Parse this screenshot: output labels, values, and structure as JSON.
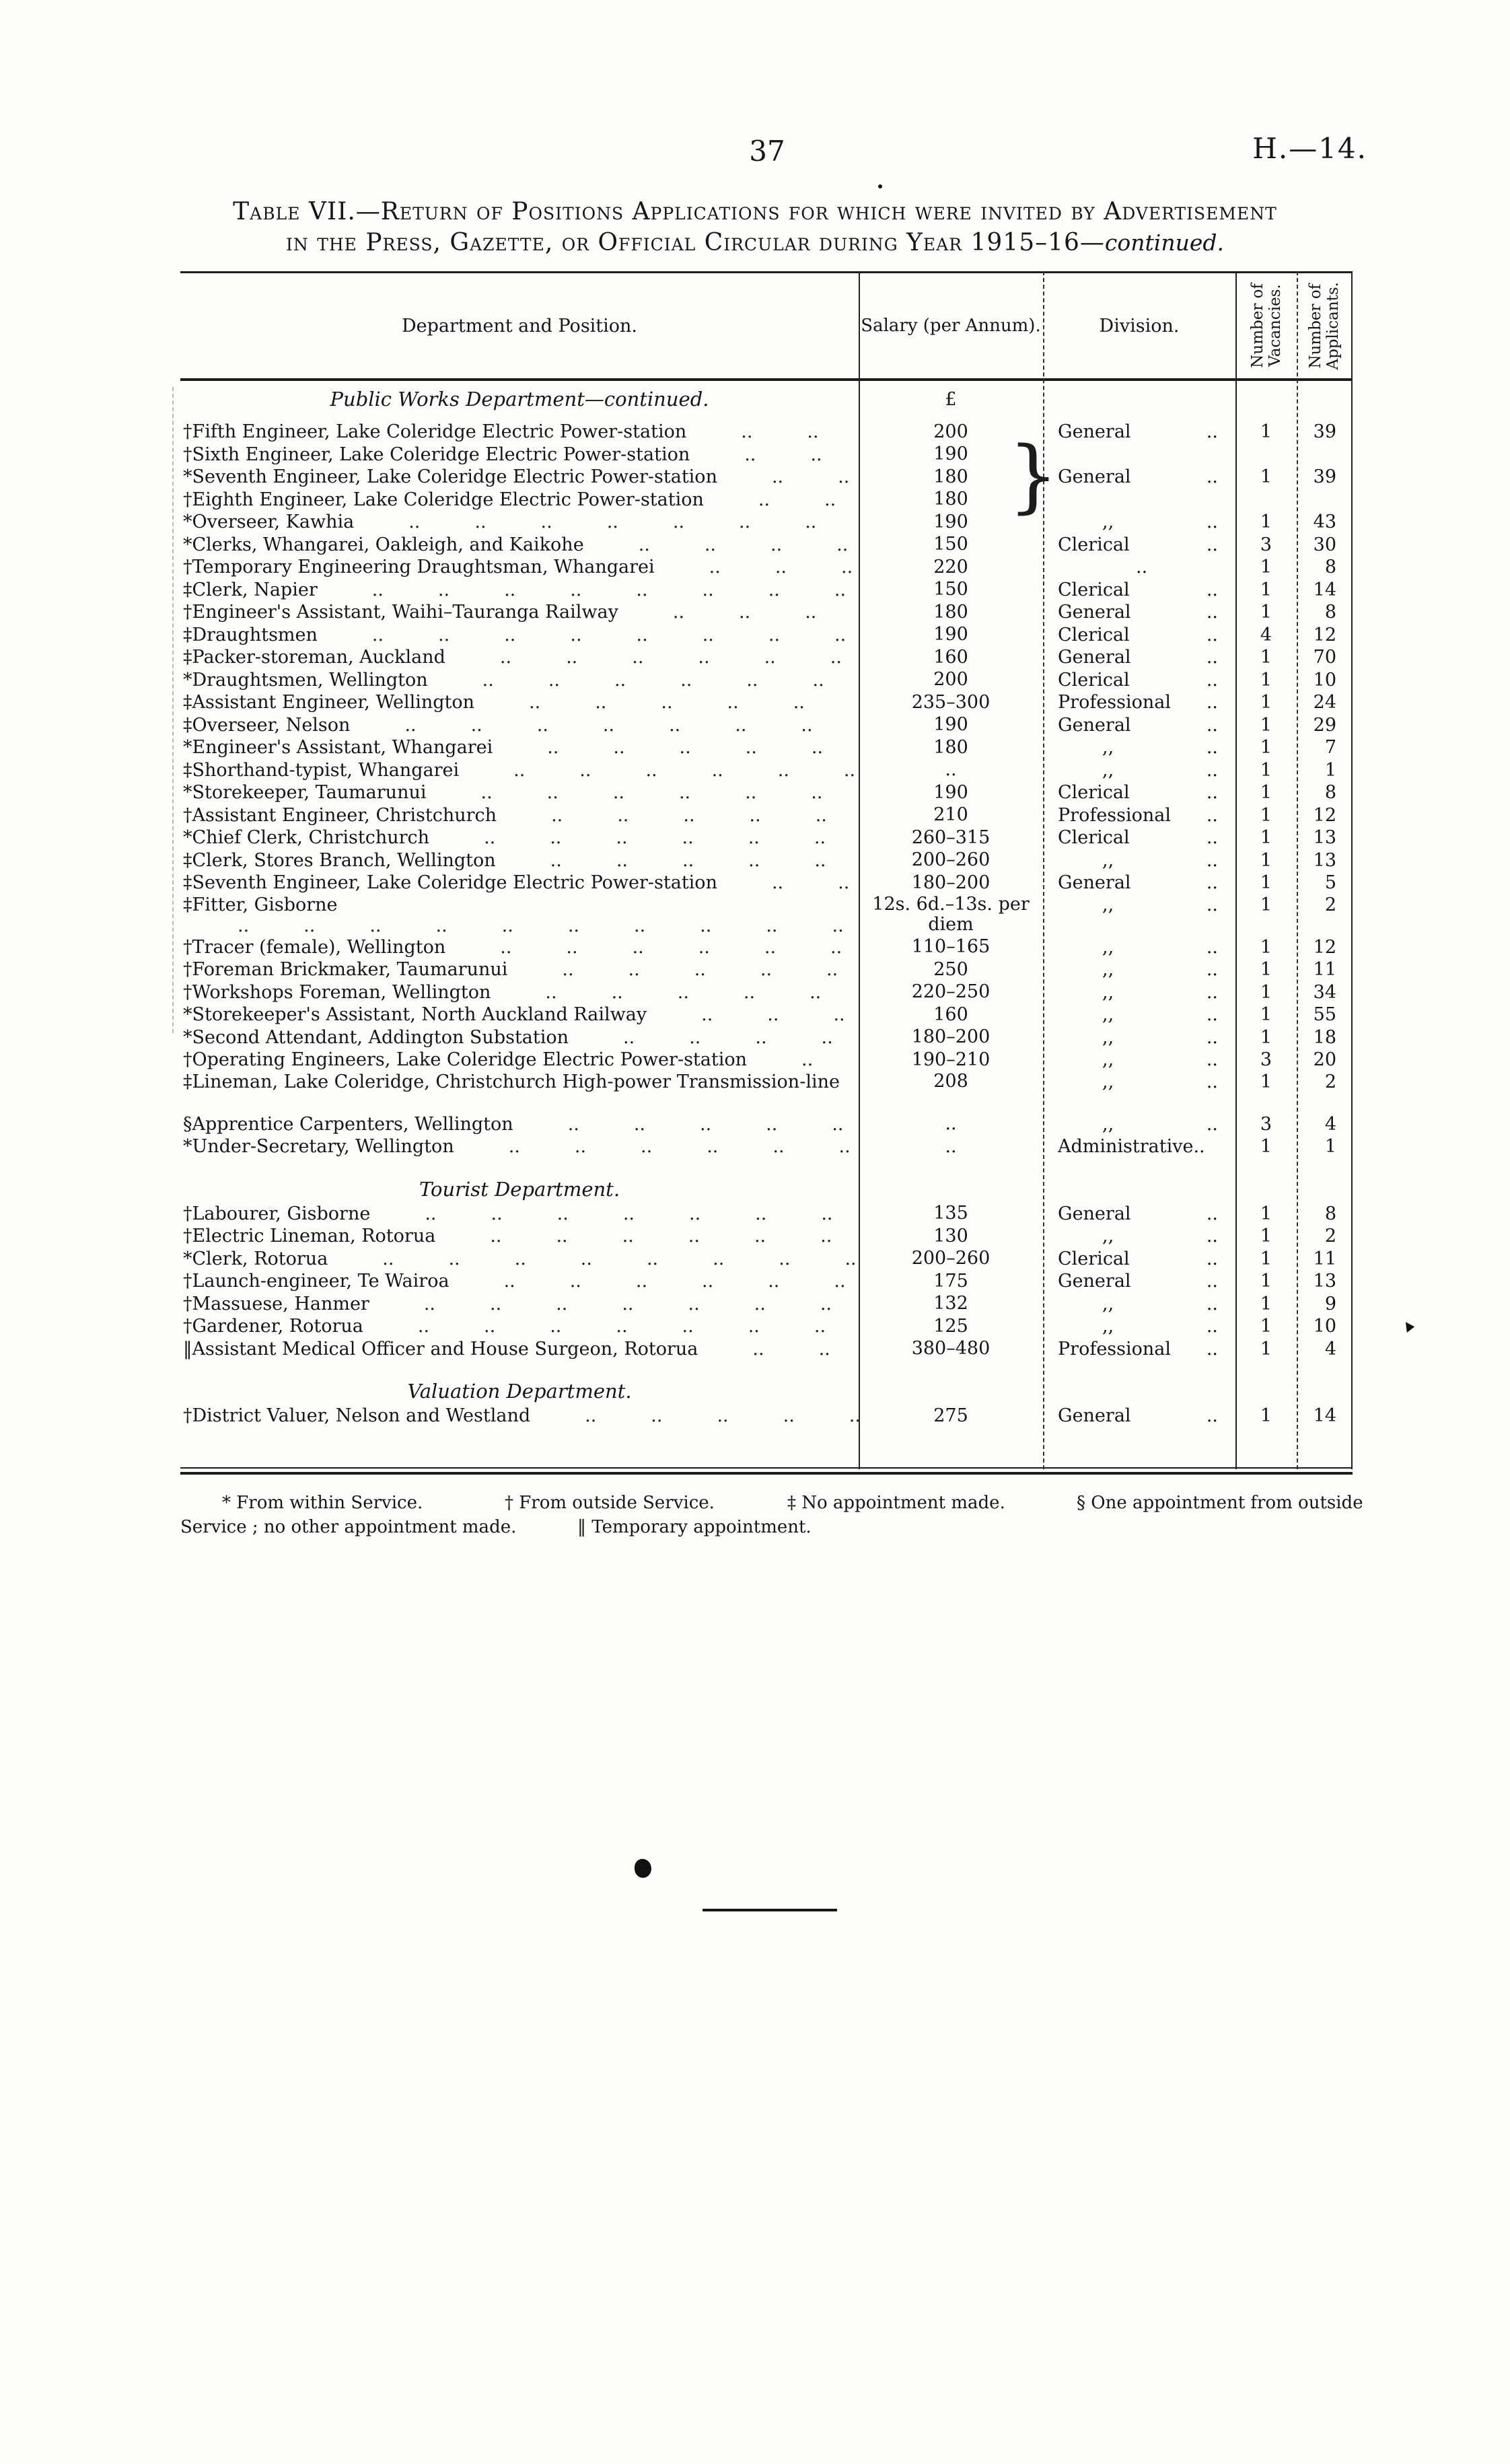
{
  "page": {
    "number": "37",
    "code": "H.—14."
  },
  "title": {
    "line1": "Table VII.—Return of Positions Applications for which were invited by Advertisement",
    "line2_pre": "in the Press, Gazette, or Official Circular during Year 1915–16—",
    "line2_italic": "continued."
  },
  "table": {
    "currency_symbol": "£",
    "headers": {
      "department": "Department and Position.",
      "salary": "Salary (per Annum).",
      "division": "Division.",
      "vacancies": "Number of\nVacancies.",
      "applicants": "Number of\nApplicants."
    },
    "rows": [
      {
        "type": "section",
        "label": "Public Works Department—continued.",
        "currency": true
      },
      {
        "type": "item",
        "marker": "†",
        "position": "Fifth Engineer, Lake Coleridge Electric Power-station",
        "salary": "200",
        "division": "General",
        "vacancies": "1",
        "applicants": "39"
      },
      {
        "type": "item",
        "marker": "†",
        "position": "Sixth Engineer, Lake Coleridge Electric Power-station",
        "salary": "190",
        "division": "",
        "vacancies": "",
        "applicants": ""
      },
      {
        "type": "item",
        "marker": "*",
        "position": "Seventh Engineer, Lake Coleridge Electric Power-station",
        "salary": "180",
        "division": "General",
        "vacancies": "1",
        "applicants": "39"
      },
      {
        "type": "item",
        "marker": "†",
        "position": "Eighth Engineer, Lake Coleridge Electric Power-station",
        "salary": "180",
        "division": "",
        "vacancies": "",
        "applicants": ""
      },
      {
        "type": "item",
        "marker": "*",
        "position": "Overseer, Kawhia",
        "salary": "190",
        "division": ",,",
        "vacancies": "1",
        "applicants": "43"
      },
      {
        "type": "item",
        "marker": "*",
        "position": "Clerks, Whangarei, Oakleigh, and Kaikohe",
        "salary": "150",
        "division": "Clerical",
        "vacancies": "3",
        "applicants": "30"
      },
      {
        "type": "item",
        "marker": "†",
        "position": "Temporary Engineering Draughtsman, Whangarei",
        "salary": "220",
        "division": "..",
        "vacancies": "1",
        "applicants": "8"
      },
      {
        "type": "item",
        "marker": "‡",
        "position": "Clerk, Napier",
        "salary": "150",
        "division": "Clerical",
        "vacancies": "1",
        "applicants": "14"
      },
      {
        "type": "item",
        "marker": "†",
        "position": "Engineer's Assistant, Waihi–Tauranga Railway",
        "salary": "180",
        "division": "General",
        "vacancies": "1",
        "applicants": "8"
      },
      {
        "type": "item",
        "marker": "‡",
        "position": "Draughtsmen",
        "salary": "190",
        "division": "Clerical",
        "vacancies": "4",
        "applicants": "12"
      },
      {
        "type": "item",
        "marker": "‡",
        "position": "Packer-storeman, Auckland",
        "salary": "160",
        "division": "General",
        "vacancies": "1",
        "applicants": "70"
      },
      {
        "type": "item",
        "marker": "*",
        "position": "Draughtsmen, Wellington",
        "salary": "200",
        "division": "Clerical",
        "vacancies": "1",
        "applicants": "10"
      },
      {
        "type": "item",
        "marker": "‡",
        "position": "Assistant Engineer, Wellington",
        "salary": "235–300",
        "division": "Professional",
        "vacancies": "1",
        "applicants": "24"
      },
      {
        "type": "item",
        "marker": "‡",
        "position": "Overseer, Nelson",
        "salary": "190",
        "division": "General",
        "vacancies": "1",
        "applicants": "29"
      },
      {
        "type": "item",
        "marker": "*",
        "position": "Engineer's Assistant, Whangarei",
        "salary": "180",
        "division": ",,",
        "vacancies": "1",
        "applicants": "7"
      },
      {
        "type": "item",
        "marker": "‡",
        "position": "Shorthand-typist, Whangarei",
        "salary": "..",
        "division": ",,",
        "vacancies": "1",
        "applicants": "1"
      },
      {
        "type": "item",
        "marker": "*",
        "position": "Storekeeper, Taumarunui",
        "salary": "190",
        "division": "Clerical",
        "vacancies": "1",
        "applicants": "8"
      },
      {
        "type": "item",
        "marker": "†",
        "position": "Assistant Engineer, Christchurch",
        "salary": "210",
        "division": "Professional",
        "vacancies": "1",
        "applicants": "12"
      },
      {
        "type": "item",
        "marker": "*",
        "position": "Chief Clerk, Christchurch",
        "salary": "260–315",
        "division": "Clerical",
        "vacancies": "1",
        "applicants": "13"
      },
      {
        "type": "item",
        "marker": "‡",
        "position": "Clerk, Stores Branch, Wellington",
        "salary": "200–260",
        "division": ",,",
        "vacancies": "1",
        "applicants": "13"
      },
      {
        "type": "item",
        "marker": "‡",
        "position": "Seventh Engineer, Lake Coleridge Electric Power-station",
        "salary": "180–200",
        "division": "General",
        "vacancies": "1",
        "applicants": "5"
      },
      {
        "type": "item",
        "tall": true,
        "marker": "‡",
        "position": "Fitter, Gisborne",
        "salary": "12s. 6d.–13s. per diem",
        "division": ",,",
        "vacancies": "1",
        "applicants": "2"
      },
      {
        "type": "item",
        "marker": "†",
        "position": "Tracer (female), Wellington",
        "salary": "110–165",
        "division": ",,",
        "vacancies": "1",
        "applicants": "12"
      },
      {
        "type": "item",
        "marker": "†",
        "position": "Foreman Brickmaker, Taumarunui",
        "salary": "250",
        "division": ",,",
        "vacancies": "1",
        "applicants": "11"
      },
      {
        "type": "item",
        "marker": "†",
        "position": "Workshops Foreman, Wellington",
        "salary": "220–250",
        "division": ",,",
        "vacancies": "1",
        "applicants": "34"
      },
      {
        "type": "item",
        "marker": "*",
        "position": "Storekeeper's Assistant, North Auckland Railway",
        "salary": "160",
        "division": ",,",
        "vacancies": "1",
        "applicants": "55"
      },
      {
        "type": "item",
        "marker": "*",
        "position": "Second Attendant, Addington Substation",
        "salary": "180–200",
        "division": ",,",
        "vacancies": "1",
        "applicants": "18"
      },
      {
        "type": "item",
        "marker": "†",
        "position": "Operating Engineers, Lake Coleridge Electric Power-station",
        "salary": "190–210",
        "division": ",,",
        "vacancies": "3",
        "applicants": "20"
      },
      {
        "type": "item",
        "tall": true,
        "noleader": true,
        "marker": "‡",
        "position": "Lineman, Lake Coleridge, Christchurch High-power Transmission-line",
        "salary": "208",
        "division": ",,",
        "vacancies": "1",
        "applicants": "2"
      },
      {
        "type": "item",
        "marker": "§",
        "position": "Apprentice Carpenters, Wellington",
        "salary": "..",
        "division": ",,",
        "vacancies": "3",
        "applicants": "4"
      },
      {
        "type": "item",
        "marker": "*",
        "position": "Under-Secretary, Wellington",
        "salary": "..",
        "division": "Administrative..",
        "vacancies": "1",
        "applicants": "1"
      },
      {
        "type": "section",
        "label": "Tourist Department."
      },
      {
        "type": "item",
        "marker": "†",
        "position": "Labourer, Gisborne",
        "salary": "135",
        "division": "General",
        "vacancies": "1",
        "applicants": "8"
      },
      {
        "type": "item",
        "marker": "†",
        "position": "Electric Lineman, Rotorua",
        "salary": "130",
        "division": ",,",
        "vacancies": "1",
        "applicants": "2"
      },
      {
        "type": "item",
        "marker": "*",
        "position": "Clerk, Rotorua",
        "salary": "200–260",
        "division": "Clerical",
        "vacancies": "1",
        "applicants": "11"
      },
      {
        "type": "item",
        "marker": "†",
        "position": "Launch-engineer, Te Wairoa",
        "salary": "175",
        "division": "General",
        "vacancies": "1",
        "applicants": "13"
      },
      {
        "type": "item",
        "marker": "†",
        "position": "Massuese, Hanmer",
        "salary": "132",
        "division": ",,",
        "vacancies": "1",
        "applicants": "9"
      },
      {
        "type": "item",
        "marker": "†",
        "position": "Gardener, Rotorua",
        "salary": "125",
        "division": ",,",
        "vacancies": "1",
        "applicants": "10"
      },
      {
        "type": "item",
        "marker": "‖",
        "position": "Assistant Medical Officer and House Surgeon, Rotorua",
        "salary": "380–480",
        "division": "Professional",
        "vacancies": "1",
        "applicants": "4"
      },
      {
        "type": "section",
        "label": "Valuation Department."
      },
      {
        "type": "item",
        "marker": "†",
        "position": "District Valuer, Nelson and Westland",
        "salary": "275",
        "division": "General",
        "vacancies": "1",
        "applicants": "14"
      }
    ],
    "brace": "}"
  },
  "footnotes": {
    "line1": [
      "* From within Service.",
      "† From outside Service.",
      "‡ No appointment made.",
      "§ One appointment from outside"
    ],
    "line2": [
      "Service ; no other appointment made.",
      "‖ Temporary appointment."
    ]
  }
}
